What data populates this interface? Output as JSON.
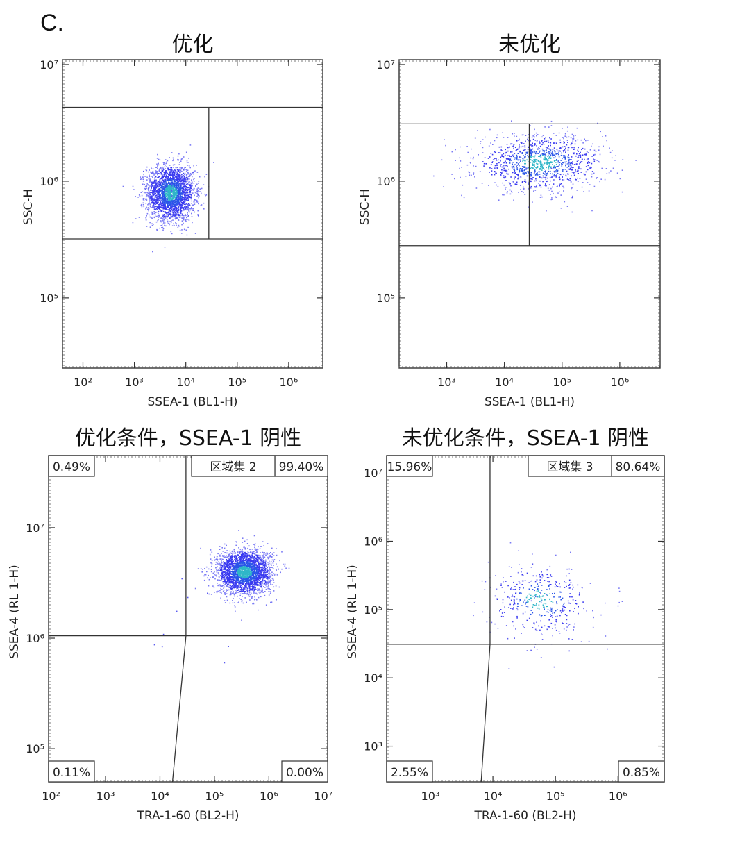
{
  "figure": {
    "panel_label": "C."
  },
  "chart_data": [
    {
      "type": "scatter",
      "title": "优化",
      "xlabel": "SSEA-1 (BL1-H)",
      "ylabel": "SSC-H",
      "xscale": "log",
      "yscale": "log",
      "xlim": [
        40,
        4600000
      ],
      "ylim": [
        25000,
        11000000
      ],
      "xticks": [
        100,
        1000,
        10000,
        100000,
        1000000
      ],
      "xtick_labels": [
        "10²",
        "10³",
        "10⁴",
        "10⁵",
        "10⁶"
      ],
      "yticks": [
        100000,
        1000000,
        10000000
      ],
      "ytick_labels": [
        "10⁵",
        "10⁶",
        "10⁷"
      ],
      "gates": {
        "y_low": 320000,
        "y_high": 4300000,
        "x_div": 28000
      },
      "quadrants": [],
      "region_label": "",
      "cluster": {
        "x": 5000,
        "y": 800000,
        "x_spread_dec": 0.23,
        "y_spread_dec": 0.12,
        "n": 2400,
        "outliers": 90,
        "out_x_dec": 0.55,
        "out_y_dec": 0.22
      }
    },
    {
      "type": "scatter",
      "title": "未优化",
      "xlabel": "SSEA-1 (BL1-H)",
      "ylabel": "SSC-H",
      "xscale": "log",
      "yscale": "log",
      "xlim": [
        150,
        5000000
      ],
      "ylim": [
        25000,
        11000000
      ],
      "xticks": [
        1000,
        10000,
        100000,
        1000000
      ],
      "xtick_labels": [
        "10³",
        "10⁴",
        "10⁵",
        "10⁶"
      ],
      "yticks": [
        100000,
        1000000,
        10000000
      ],
      "ytick_labels": [
        "10⁵",
        "10⁶",
        "10⁷"
      ],
      "gates": {
        "y_low": 280000,
        "y_high": 3100000,
        "x_div": 27000
      },
      "quadrants": [],
      "region_label": "",
      "cluster": {
        "x": 40000,
        "y": 1450000,
        "x_spread_dec": 0.55,
        "y_spread_dec": 0.12,
        "n": 1100,
        "outliers": 30,
        "out_x_dec": 0.7,
        "out_y_dec": 0.3
      }
    },
    {
      "type": "scatter",
      "title": "优化条件，SSEA-1 阴性",
      "xlabel": "TRA-1-60 (BL2-H)",
      "ylabel": "SSEA-4 (RL 1-H)",
      "xscale": "log",
      "yscale": "log",
      "xlim": [
        90,
        12000000
      ],
      "ylim": [
        50000,
        45000000
      ],
      "xticks": [
        100,
        1000,
        10000,
        100000,
        1000000,
        10000000
      ],
      "xtick_labels": [
        "10²",
        "10³",
        "10⁴",
        "10⁵",
        "10⁶",
        "10⁷"
      ],
      "yticks": [
        100000,
        1000000,
        10000000
      ],
      "ytick_labels": [
        "10⁵",
        "10⁶",
        "10⁷"
      ],
      "gates": {
        "y_div": 1050000,
        "x_div_top": 30000,
        "x_div_bottom": 17000
      },
      "quadrants": [
        "0.49%",
        "99.40%",
        "0.11%",
        "0.00%"
      ],
      "region_label": "区域集 2",
      "cluster": {
        "x": 350000,
        "y": 4000000,
        "x_spread_dec": 0.25,
        "y_spread_dec": 0.1,
        "n": 2600,
        "outliers": 12,
        "out_x_dec": 0.9,
        "out_y_dec": 0.4
      }
    },
    {
      "type": "scatter",
      "title": "未优化条件，SSEA-1 阴性",
      "xlabel": "TRA-1-60 (BL2-H)",
      "ylabel": "SSEA-4 (RL 1-H)",
      "xscale": "log",
      "yscale": "log",
      "xlim": [
        200,
        5500000
      ],
      "ylim": [
        300,
        18000000
      ],
      "xticks": [
        1000,
        10000,
        100000,
        1000000
      ],
      "xtick_labels": [
        "10³",
        "10⁴",
        "10⁵",
        "10⁶"
      ],
      "yticks": [
        1000,
        10000,
        100000,
        1000000,
        10000000
      ],
      "ytick_labels": [
        "10³",
        "10⁴",
        "10⁵",
        "10⁶",
        "10⁷"
      ],
      "gates": {
        "y_div": 31000,
        "x_div_top": 9000,
        "x_div_bottom": 6500
      },
      "quadrants": [
        "15.96%",
        "80.64%",
        "2.55%",
        "0.85%"
      ],
      "region_label": "区域集 3",
      "cluster": {
        "x": 55000,
        "y": 140000,
        "x_spread_dec": 0.4,
        "y_spread_dec": 0.25,
        "n": 380,
        "outliers": 35,
        "out_x_dec": 0.6,
        "out_y_dec": 0.6
      }
    }
  ]
}
